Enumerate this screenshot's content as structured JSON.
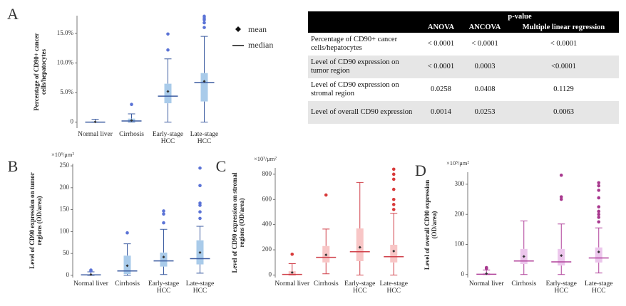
{
  "chart_data": [
    {
      "type": "box",
      "panel": "A",
      "ylabel": "Percentage of CD90+ cancer cells/hepatocytes",
      "legend": [
        "mean",
        "median"
      ],
      "categories": [
        "Normal liver",
        "Cirrhosis",
        "Early-stage HCC",
        "Late-stage HCC"
      ],
      "ylim": [
        -1,
        18
      ],
      "yticks": [
        0,
        {
          "value": 5,
          "label": "5.0%"
        },
        {
          "value": 10,
          "label": "10.0%"
        },
        {
          "value": 15,
          "label": "15.0%"
        }
      ],
      "box_color": "#a9cbea",
      "line_color": "#3b5ba0",
      "point_color": "#5b73d6",
      "boxes": [
        {
          "min": 0,
          "q1": 0,
          "median": 0,
          "q3": 0.1,
          "max": 0.5,
          "mean": 0.05,
          "outliers": []
        },
        {
          "min": 0,
          "q1": 0,
          "median": 0.2,
          "q3": 0.6,
          "max": 1.4,
          "mean": 0.3,
          "outliers": [
            3.0
          ]
        },
        {
          "min": 0,
          "q1": 3.2,
          "median": 4.4,
          "q3": 6.5,
          "max": 10.7,
          "mean": 5.2,
          "outliers": [
            12.2,
            14.9
          ]
        },
        {
          "min": 0,
          "q1": 3.5,
          "median": 6.7,
          "q3": 8.3,
          "max": 14.5,
          "mean": 6.9,
          "outliers": [
            16.0,
            16.8,
            17.3,
            17.6,
            17.9
          ]
        }
      ]
    },
    {
      "type": "box",
      "panel": "B",
      "unit": "×10³/μm²",
      "ylabel": "Level of CD90 expression on tumor regions (OD/area)",
      "categories": [
        "Normal liver",
        "Cirrhosis",
        "Early-stage HCC",
        "Late-stage HCC"
      ],
      "ylim": [
        -5,
        255
      ],
      "yticks": [
        0,
        50,
        100,
        150,
        200,
        250
      ],
      "box_color": "#a9cbea",
      "line_color": "#3b5ba0",
      "point_color": "#5b73d6",
      "boxes": [
        {
          "min": 0,
          "q1": 0,
          "median": 1,
          "q3": 2,
          "max": 8,
          "mean": 2,
          "outliers": [
            10,
            12
          ]
        },
        {
          "min": 0,
          "q1": 3,
          "median": 10,
          "q3": 45,
          "max": 72,
          "mean": 22,
          "outliers": [
            97
          ]
        },
        {
          "min": 2,
          "q1": 20,
          "median": 33,
          "q3": 52,
          "max": 105,
          "mean": 42,
          "outliers": [
            120,
            140,
            147
          ]
        },
        {
          "min": 5,
          "q1": 25,
          "median": 38,
          "q3": 80,
          "max": 112,
          "mean": 52,
          "outliers": [
            130,
            145,
            160,
            165,
            205,
            245
          ]
        }
      ]
    },
    {
      "type": "box",
      "panel": "C",
      "unit": "×10³/μm²",
      "ylabel": "Level of CD90 expression on stromal regions (OD/area)",
      "categories": [
        "Normal liver",
        "Cirrhosis",
        "Early-stage HCC",
        "Late-stage HCC"
      ],
      "ylim": [
        -20,
        850
      ],
      "yticks": [
        0,
        200,
        400,
        600,
        800
      ],
      "box_color": "#f8c6c6",
      "line_color": "#d0404a",
      "point_color": "#d83a3a",
      "boxes": [
        {
          "min": 0,
          "q1": 0,
          "median": 5,
          "q3": 30,
          "max": 90,
          "mean": 20,
          "outliers": [
            165
          ]
        },
        {
          "min": 10,
          "q1": 100,
          "median": 140,
          "q3": 230,
          "max": 365,
          "mean": 160,
          "outliers": [
            635
          ]
        },
        {
          "min": 0,
          "q1": 110,
          "median": 185,
          "q3": 370,
          "max": 735,
          "mean": 220,
          "outliers": []
        },
        {
          "min": 0,
          "q1": 100,
          "median": 145,
          "q3": 240,
          "max": 490,
          "mean": 190,
          "outliers": [
            520,
            560,
            600,
            680,
            760,
            800,
            840
          ]
        }
      ]
    },
    {
      "type": "box",
      "panel": "D",
      "unit": "×10³/μm²",
      "ylabel": "Level of overall CD90 expression (OD/area)",
      "categories": [
        "Normal liver",
        "Cirrhosis",
        "Early-stage HCC",
        "Late-stage HCC"
      ],
      "ylim": [
        -10,
        340
      ],
      "yticks": [
        0,
        100,
        200,
        300
      ],
      "box_color": "#ecc6ec",
      "line_color": "#b0409a",
      "point_color": "#a8388e",
      "boxes": [
        {
          "min": 0,
          "q1": 0,
          "median": 1,
          "q3": 5,
          "max": 15,
          "mean": 3,
          "outliers": [
            20,
            23
          ]
        },
        {
          "min": 0,
          "q1": 35,
          "median": 45,
          "q3": 85,
          "max": 178,
          "mean": 60,
          "outliers": []
        },
        {
          "min": 0,
          "q1": 30,
          "median": 42,
          "q3": 85,
          "max": 168,
          "mean": 63,
          "outliers": [
            250,
            258,
            330
          ]
        },
        {
          "min": 5,
          "q1": 40,
          "median": 55,
          "q3": 90,
          "max": 155,
          "mean": 75,
          "outliers": [
            175,
            190,
            200,
            210,
            225,
            255,
            280,
            295,
            305
          ]
        }
      ]
    }
  ],
  "table": {
    "header": "p-value",
    "columns": [
      "ANOVA",
      "ANCOVA",
      "Multiple linear regression"
    ],
    "rows": [
      {
        "label": "Percentage of CD90+ cancer cells/hepatocytes",
        "values": [
          "< 0.0001",
          "< 0.0001",
          "< 0.0001"
        ]
      },
      {
        "label": "Level of CD90 expression on tumor region",
        "values": [
          "< 0.0001",
          "0.0003",
          "<0.0001"
        ]
      },
      {
        "label": "Level of CD90 expression on stromal region",
        "values": [
          "0.0258",
          "0.0408",
          "0.1129"
        ]
      },
      {
        "label": "Level of overall CD90 expression",
        "values": [
          "0.0014",
          "0.0253",
          "0.0063"
        ]
      }
    ]
  }
}
